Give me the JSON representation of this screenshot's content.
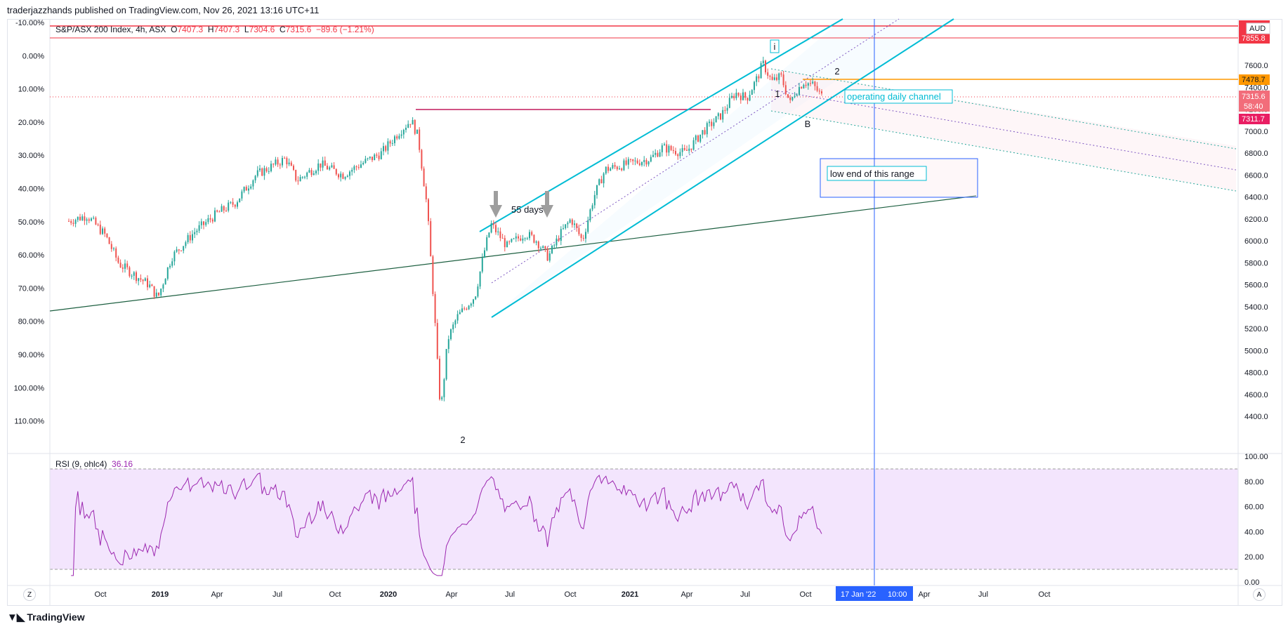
{
  "publisher": "traderjazzhands published on TradingView.com, Nov 26, 2021 13:16 UTC+11",
  "legend": {
    "symbol": "S&P/ASX 200 Index, 4h, ASX",
    "o_k": "O",
    "o_v": "7407.3",
    "h_k": "H",
    "h_v": "7407.3",
    "l_k": "L",
    "l_v": "7304.6",
    "c_k": "C",
    "c_v": "7315.6",
    "chg": "−89.6 (−1.21%)"
  },
  "rsi_legend": {
    "label": "RSI (9, ohlc4)",
    "value": "36.16"
  },
  "brand": "TradingView",
  "buttons": {
    "zoom": "Z",
    "auto": "A"
  },
  "annotations": {
    "wave_i": "i",
    "wave_1": "1",
    "wave_2_top": "2",
    "wave_b": "B",
    "wave_2_low": "2",
    "days": "55 days",
    "channel": "operating daily channel",
    "range": "low end of this range"
  },
  "colors": {
    "up": "#26a69a",
    "down": "#ef5350",
    "channel": "#00bcd4",
    "rsi": "#9c27b0",
    "rsi_band": "#f3e5fd",
    "vline": "#2962ff",
    "trend": "#1b5e3f",
    "red": "#f23645",
    "orange": "#ff9800"
  },
  "chart_data": {
    "type": "candlestick",
    "symbol": "S&P/ASX 200 Index",
    "interval": "4h",
    "currency": "AUD",
    "x_ticks": [
      "Oct",
      "2019",
      "Apr",
      "Jul",
      "Oct",
      "2020",
      "Apr",
      "Jul",
      "Oct",
      "2021",
      "Apr",
      "Jul",
      "Oct",
      "Apr",
      "Jul",
      "Oct"
    ],
    "cursor_date": "17 Jan '22",
    "cursor_time": "10:00",
    "y_ticks_price": [
      "4400.0",
      "4600.0",
      "4800.0",
      "5000.0",
      "5200.0",
      "5400.0",
      "5600.0",
      "5800.0",
      "6000.0",
      "6200.0",
      "6400.0",
      "6600.0",
      "6800.0",
      "7000.0",
      "7200.0",
      "7400.0",
      "7600.0"
    ],
    "y_ticks_percent": [
      "-10.00%",
      "0.00%",
      "10.00%",
      "20.00%",
      "30.00%",
      "40.00%",
      "50.00%",
      "60.00%",
      "70.00%",
      "80.00%",
      "90.00%",
      "100.00%",
      "110.00%"
    ],
    "price_labels": {
      "line_top": "7855.8",
      "orange": "7478.7",
      "last": "7315.6",
      "countdown": "58:40",
      "magenta": "7311.7",
      "currency": "AUD"
    },
    "price_path": [
      [
        2018.6,
        6180
      ],
      [
        2018.68,
        6230
      ],
      [
        2018.76,
        6050
      ],
      [
        2018.82,
        5790
      ],
      [
        2018.88,
        5700
      ],
      [
        2018.95,
        5600
      ],
      [
        2018.99,
        5480
      ],
      [
        2019.05,
        5850
      ],
      [
        2019.15,
        6080
      ],
      [
        2019.25,
        6250
      ],
      [
        2019.33,
        6350
      ],
      [
        2019.42,
        6600
      ],
      [
        2019.55,
        6750
      ],
      [
        2019.6,
        6550
      ],
      [
        2019.7,
        6700
      ],
      [
        2019.8,
        6600
      ],
      [
        2019.88,
        6700
      ],
      [
        2019.97,
        6800
      ],
      [
        2020.05,
        7000
      ],
      [
        2020.1,
        7100
      ],
      [
        2020.13,
        6950
      ],
      [
        2020.17,
        6300
      ],
      [
        2020.2,
        5400
      ],
      [
        2020.22,
        4700
      ],
      [
        2020.23,
        4450
      ],
      [
        2020.26,
        5100
      ],
      [
        2020.3,
        5300
      ],
      [
        2020.38,
        5500
      ],
      [
        2020.42,
        5900
      ],
      [
        2020.45,
        6150
      ],
      [
        2020.52,
        5950
      ],
      [
        2020.6,
        6070
      ],
      [
        2020.65,
        6000
      ],
      [
        2020.7,
        5850
      ],
      [
        2020.75,
        6050
      ],
      [
        2020.8,
        6200
      ],
      [
        2020.85,
        6000
      ],
      [
        2020.9,
        6400
      ],
      [
        2020.95,
        6650
      ],
      [
        2021.05,
        6700
      ],
      [
        2021.15,
        6750
      ],
      [
        2021.2,
        6850
      ],
      [
        2021.3,
        6800
      ],
      [
        2021.38,
        7000
      ],
      [
        2021.46,
        7150
      ],
      [
        2021.52,
        7350
      ],
      [
        2021.57,
        7300
      ],
      [
        2021.62,
        7500
      ],
      [
        2021.64,
        7620
      ],
      [
        2021.68,
        7450
      ],
      [
        2021.72,
        7500
      ],
      [
        2021.76,
        7250
      ],
      [
        2021.78,
        7350
      ],
      [
        2021.82,
        7450
      ],
      [
        2021.86,
        7420
      ],
      [
        2021.9,
        7315
      ]
    ],
    "rsi": {
      "name": "RSI (9, ohlc4)",
      "last": 36.16,
      "ylim": [
        0,
        100
      ],
      "band": [
        10,
        90
      ],
      "y_ticks": [
        "0.00",
        "20.00",
        "40.00",
        "60.00",
        "80.00",
        "100.00"
      ]
    }
  }
}
